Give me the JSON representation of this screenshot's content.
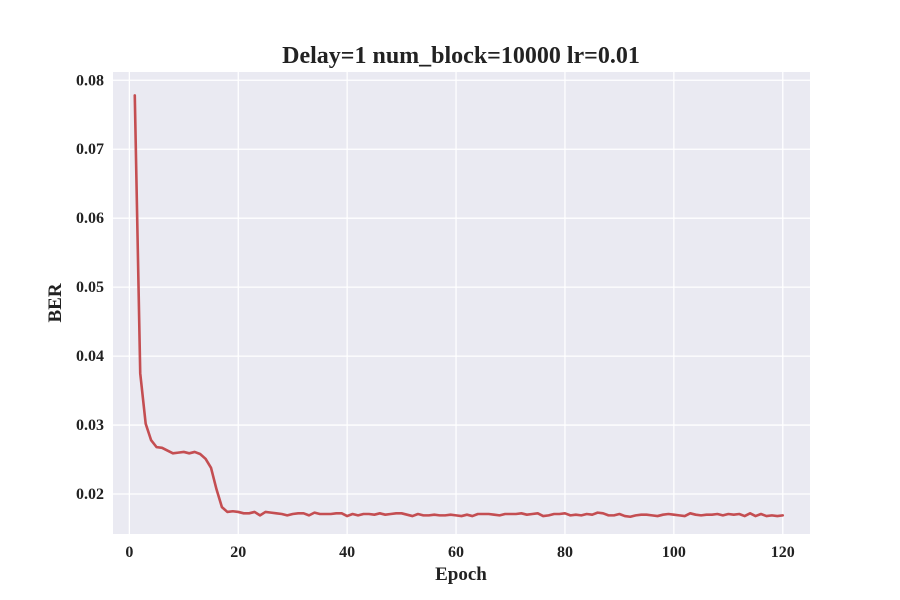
{
  "chart_data": {
    "type": "line",
    "title": "Delay=1 num_block=10000 lr=0.01",
    "xlabel": "Epoch",
    "ylabel": "BER",
    "xlim": [
      -3,
      125
    ],
    "ylim": [
      0.0142,
      0.0812
    ],
    "xticks": [
      0,
      20,
      40,
      60,
      80,
      100,
      120
    ],
    "yticks": [
      0.02,
      0.03,
      0.04,
      0.05,
      0.06,
      0.07,
      0.08
    ],
    "xtick_labels": [
      "0",
      "20",
      "40",
      "60",
      "80",
      "100",
      "120"
    ],
    "ytick_labels": [
      "0.02",
      "0.03",
      "0.04",
      "0.05",
      "0.06",
      "0.07",
      "0.08"
    ],
    "grid": true,
    "background_color": "#eaeaf2",
    "grid_color": "#ffffff",
    "series": [
      {
        "color": "#c44e52",
        "x": [
          1,
          2,
          3,
          4,
          5,
          6,
          7,
          8,
          9,
          10,
          11,
          12,
          13,
          14,
          15,
          16,
          17,
          18,
          19,
          20,
          21,
          22,
          23,
          24,
          25,
          26,
          27,
          28,
          29,
          30,
          31,
          32,
          33,
          34,
          35,
          36,
          37,
          38,
          39,
          40,
          41,
          42,
          43,
          44,
          45,
          46,
          47,
          48,
          49,
          50,
          51,
          52,
          53,
          54,
          55,
          56,
          57,
          58,
          59,
          60,
          61,
          62,
          63,
          64,
          65,
          66,
          67,
          68,
          69,
          70,
          71,
          72,
          73,
          74,
          75,
          76,
          77,
          78,
          79,
          80,
          81,
          82,
          83,
          84,
          85,
          86,
          87,
          88,
          89,
          90,
          91,
          92,
          93,
          94,
          95,
          96,
          97,
          98,
          99,
          100,
          101,
          102,
          103,
          104,
          105,
          106,
          107,
          108,
          109,
          110,
          111,
          112,
          113,
          114,
          115,
          116,
          117,
          118,
          119,
          120
        ],
        "y": [
          0.0778,
          0.0375,
          0.0302,
          0.0278,
          0.0268,
          0.0267,
          0.0263,
          0.0259,
          0.026,
          0.0261,
          0.0259,
          0.0261,
          0.0258,
          0.0251,
          0.0238,
          0.0207,
          0.0181,
          0.0174,
          0.0175,
          0.0174,
          0.0172,
          0.0172,
          0.0174,
          0.0169,
          0.0174,
          0.0173,
          0.0172,
          0.0171,
          0.0169,
          0.0171,
          0.0172,
          0.0172,
          0.0169,
          0.0173,
          0.0171,
          0.0171,
          0.0171,
          0.0172,
          0.0172,
          0.0168,
          0.0171,
          0.0169,
          0.0171,
          0.0171,
          0.017,
          0.0172,
          0.017,
          0.0171,
          0.0172,
          0.0172,
          0.017,
          0.0168,
          0.0171,
          0.0169,
          0.0169,
          0.017,
          0.0169,
          0.0169,
          0.017,
          0.0169,
          0.0168,
          0.017,
          0.0168,
          0.0171,
          0.0171,
          0.0171,
          0.017,
          0.0169,
          0.0171,
          0.0171,
          0.0171,
          0.0172,
          0.017,
          0.0171,
          0.0172,
          0.0168,
          0.0169,
          0.0171,
          0.0171,
          0.0172,
          0.0169,
          0.017,
          0.0169,
          0.0171,
          0.017,
          0.0173,
          0.0172,
          0.0169,
          0.0169,
          0.0171,
          0.0168,
          0.0167,
          0.0169,
          0.017,
          0.017,
          0.0169,
          0.0168,
          0.017,
          0.0171,
          0.017,
          0.0169,
          0.0168,
          0.0172,
          0.017,
          0.0169,
          0.017,
          0.017,
          0.0171,
          0.0169,
          0.0171,
          0.017,
          0.0171,
          0.0168,
          0.0172,
          0.0168,
          0.0171,
          0.0168,
          0.0169,
          0.0168,
          0.0169
        ]
      }
    ]
  }
}
